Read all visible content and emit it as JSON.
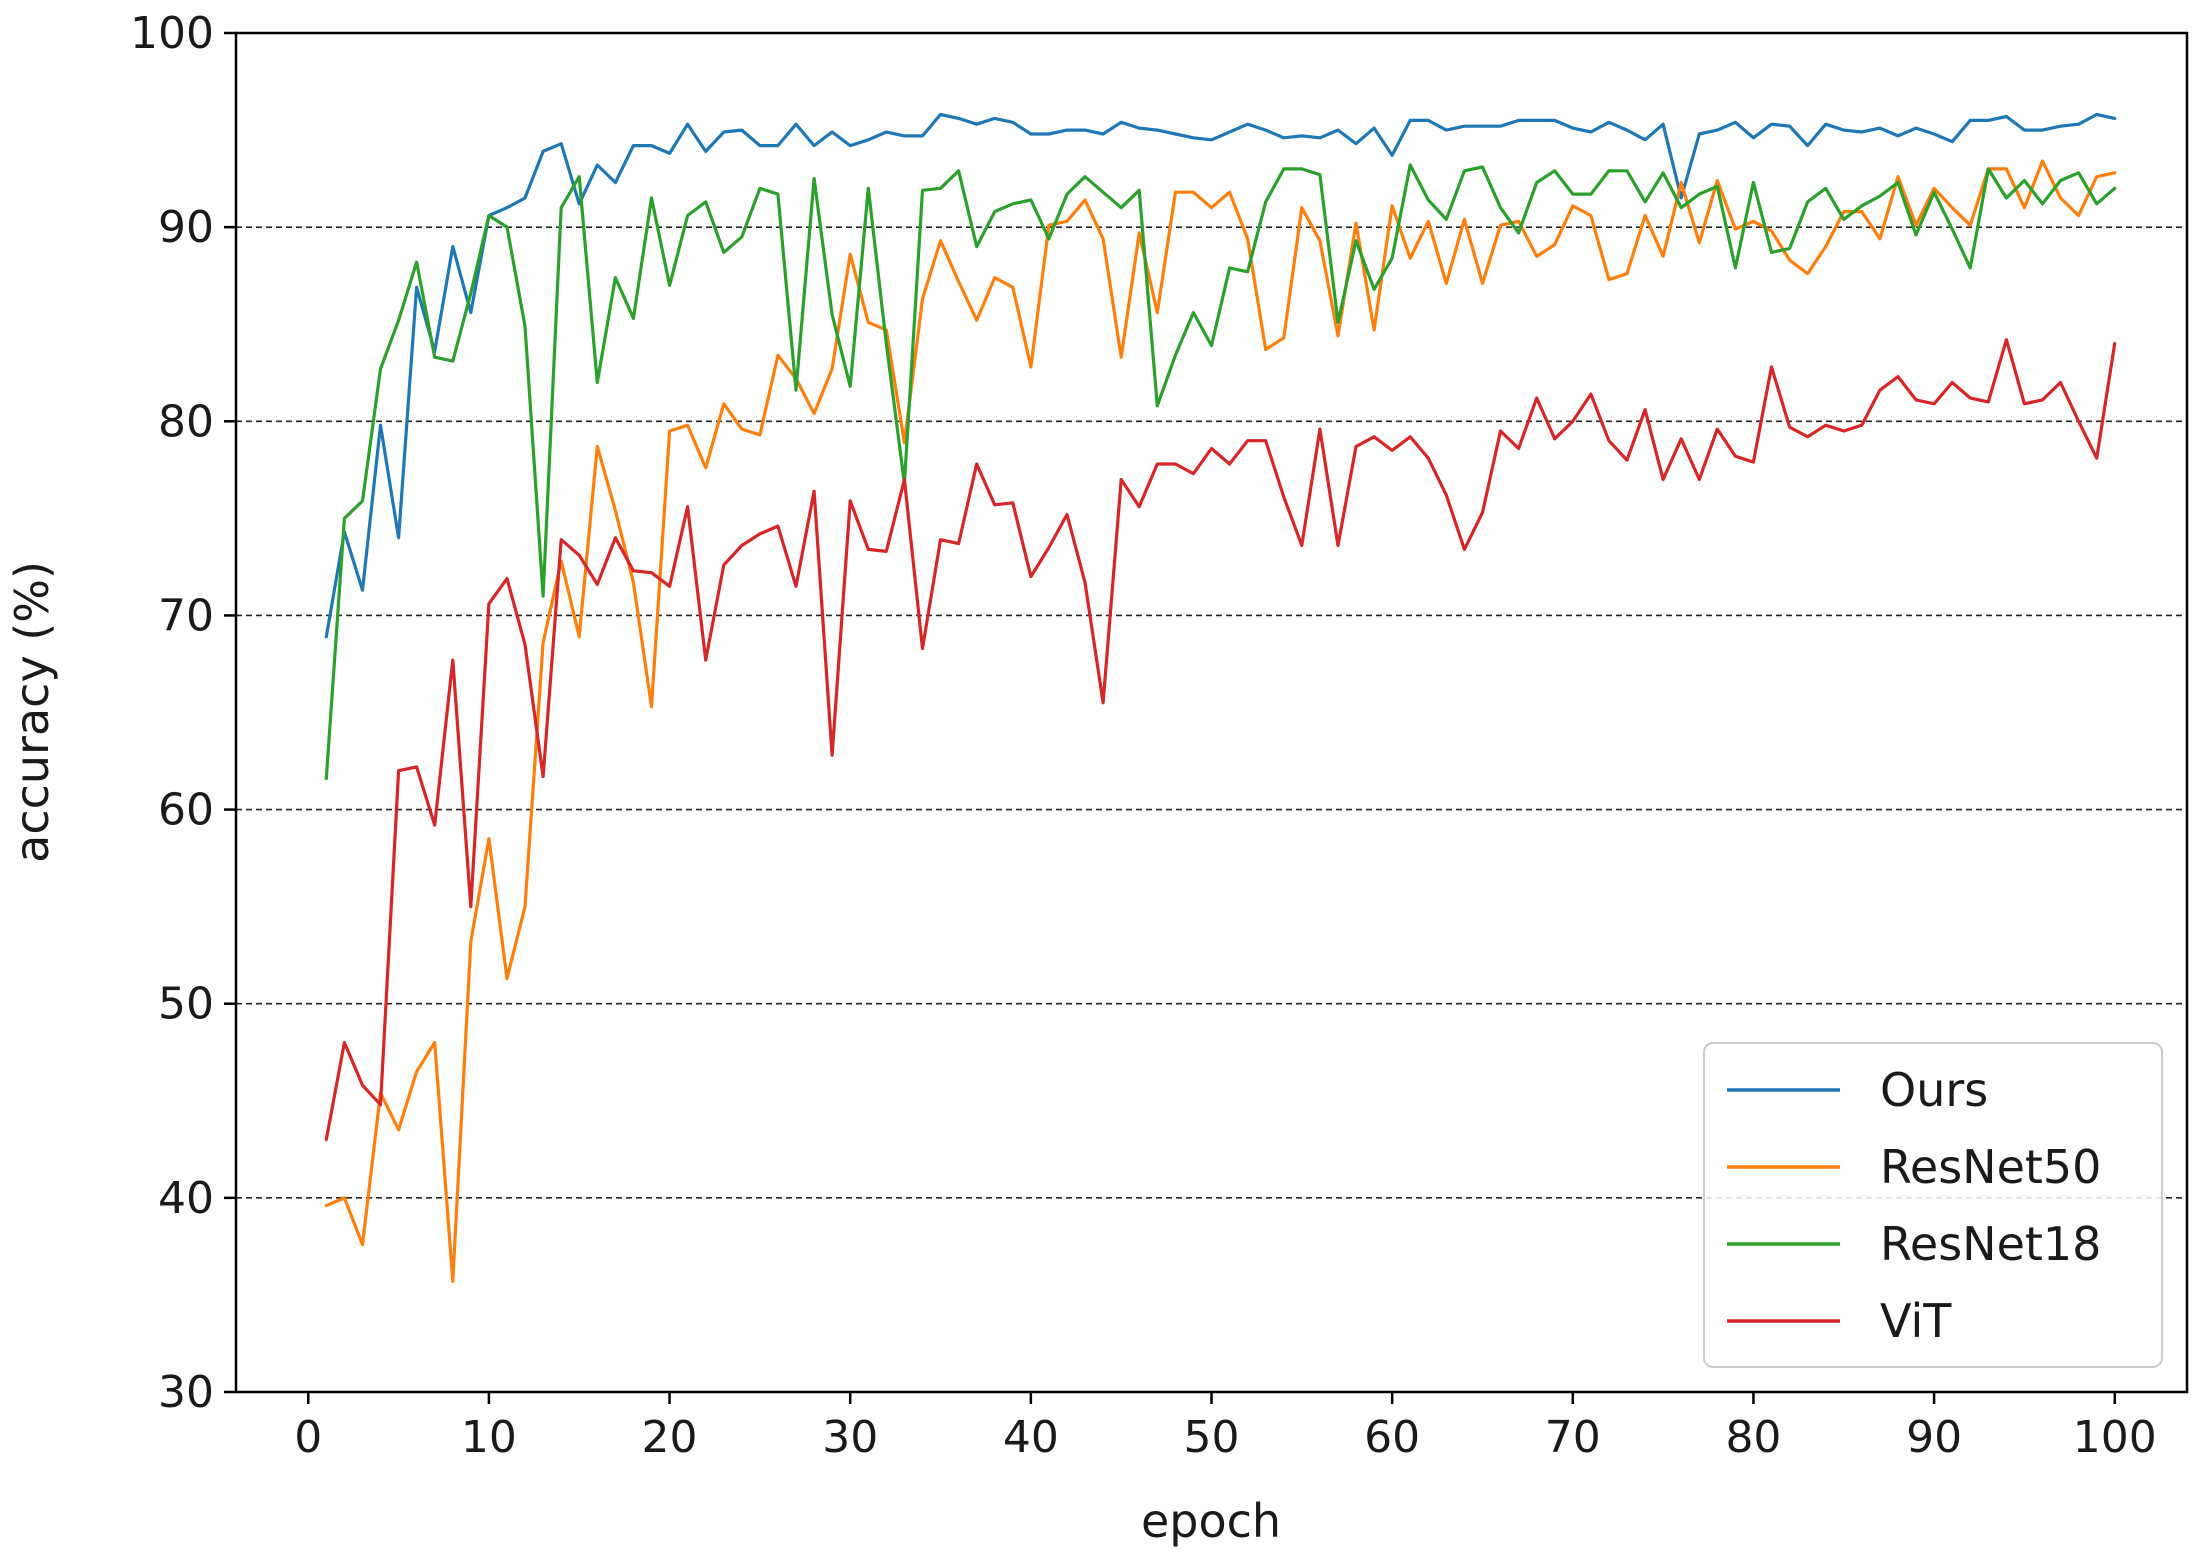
{
  "chart_data": {
    "type": "line",
    "title": "",
    "xlabel": "epoch",
    "ylabel": "accuracy (%)",
    "xlim": [
      -4,
      104
    ],
    "ylim": [
      30,
      100
    ],
    "xticks": [
      0,
      10,
      20,
      30,
      40,
      50,
      60,
      70,
      80,
      90,
      100
    ],
    "yticks": [
      30,
      40,
      50,
      60,
      70,
      80,
      90,
      100
    ],
    "xtick_labels": [
      "0",
      "10",
      "20",
      "30",
      "40",
      "50",
      "60",
      "70",
      "80",
      "90",
      "100"
    ],
    "ytick_labels": [
      "30",
      "40",
      "50",
      "60",
      "70",
      "80",
      "90",
      "100"
    ],
    "grid": {
      "axis": "y",
      "lines": [
        40,
        50,
        60,
        70,
        80,
        90
      ],
      "style": "dashed"
    },
    "legend": {
      "position": "lower right",
      "entries": [
        "Ours",
        "ResNet50",
        "ResNet18",
        "ViT"
      ]
    },
    "x": [
      1,
      2,
      3,
      4,
      5,
      6,
      7,
      8,
      9,
      10,
      11,
      12,
      13,
      14,
      15,
      16,
      17,
      18,
      19,
      20,
      21,
      22,
      23,
      24,
      25,
      26,
      27,
      28,
      29,
      30,
      31,
      32,
      33,
      34,
      35,
      36,
      37,
      38,
      39,
      40,
      41,
      42,
      43,
      44,
      45,
      46,
      47,
      48,
      49,
      50,
      51,
      52,
      53,
      54,
      55,
      56,
      57,
      58,
      59,
      60,
      61,
      62,
      63,
      64,
      65,
      66,
      67,
      68,
      69,
      70,
      71,
      72,
      73,
      74,
      75,
      76,
      77,
      78,
      79,
      80,
      81,
      82,
      83,
      84,
      85,
      86,
      87,
      88,
      89,
      90,
      91,
      92,
      93,
      94,
      95,
      96,
      97,
      98,
      99,
      100
    ],
    "series": [
      {
        "name": "Ours",
        "color": "#1f77b4",
        "values": [
          68.9,
          74.3,
          71.3,
          79.8,
          74.0,
          86.9,
          83.6,
          89.0,
          85.6,
          90.6,
          91.0,
          91.5,
          93.9,
          94.3,
          91.2,
          93.2,
          92.3,
          94.2,
          94.2,
          93.8,
          95.3,
          93.9,
          94.9,
          95.0,
          94.2,
          94.2,
          95.3,
          94.2,
          94.9,
          94.2,
          94.5,
          94.9,
          94.7,
          94.7,
          95.8,
          95.6,
          95.3,
          95.6,
          95.4,
          94.8,
          94.8,
          95.0,
          95.0,
          94.8,
          95.4,
          95.1,
          95.0,
          94.8,
          94.6,
          94.5,
          94.9,
          95.3,
          95.0,
          94.6,
          94.7,
          94.6,
          95.0,
          94.3,
          95.1,
          93.7,
          95.5,
          95.5,
          95.0,
          95.2,
          95.2,
          95.2,
          95.5,
          95.5,
          95.5,
          95.1,
          94.9,
          95.4,
          95.0,
          94.5,
          95.3,
          91.5,
          94.8,
          95.0,
          95.4,
          94.6,
          95.3,
          95.2,
          94.2,
          95.3,
          95.0,
          94.9,
          95.1,
          94.7,
          95.1,
          94.8,
          94.4,
          95.5,
          95.5,
          95.7,
          95.0,
          95.0,
          95.2,
          95.3,
          95.8,
          95.6
        ]
      },
      {
        "name": "ResNet50",
        "color": "#ff7f0e",
        "values": [
          39.6,
          40.0,
          37.6,
          45.4,
          43.5,
          46.5,
          48.0,
          35.7,
          53.2,
          58.5,
          51.3,
          55.0,
          68.6,
          72.8,
          68.9,
          78.7,
          75.4,
          71.7,
          65.3,
          79.5,
          79.8,
          77.6,
          80.9,
          79.6,
          79.3,
          83.4,
          82.2,
          80.4,
          82.7,
          88.6,
          85.1,
          84.7,
          78.9,
          86.3,
          89.3,
          87.2,
          85.2,
          87.4,
          86.9,
          82.8,
          90.1,
          90.3,
          91.4,
          89.4,
          83.3,
          89.7,
          85.6,
          91.8,
          91.8,
          91.0,
          91.8,
          89.4,
          83.7,
          84.3,
          91.0,
          89.3,
          84.4,
          90.2,
          84.7,
          91.1,
          88.4,
          90.3,
          87.1,
          90.4,
          87.1,
          90.1,
          90.3,
          88.5,
          89.1,
          91.1,
          90.6,
          87.3,
          87.6,
          90.6,
          88.5,
          92.3,
          89.2,
          92.4,
          89.9,
          90.3,
          89.8,
          88.3,
          87.6,
          89.0,
          90.8,
          90.8,
          89.4,
          92.6,
          90.1,
          92.0,
          91.0,
          90.1,
          93.0,
          93.0,
          91.0,
          93.4,
          91.5,
          90.6,
          92.6,
          92.8
        ]
      },
      {
        "name": "ResNet18",
        "color": "#2ca02c",
        "values": [
          61.6,
          75.0,
          75.9,
          82.7,
          85.2,
          88.2,
          83.3,
          83.1,
          86.6,
          90.6,
          90.0,
          84.9,
          71.0,
          91.0,
          92.6,
          82.0,
          87.4,
          85.3,
          91.5,
          87.0,
          90.6,
          91.3,
          88.7,
          89.5,
          92.0,
          91.7,
          81.6,
          92.5,
          85.5,
          81.8,
          92.0,
          84.0,
          76.8,
          91.9,
          92.0,
          92.9,
          89.0,
          90.8,
          91.2,
          91.4,
          89.4,
          91.7,
          92.6,
          91.8,
          91.0,
          91.9,
          80.8,
          83.4,
          85.6,
          83.9,
          87.9,
          87.7,
          91.3,
          93.0,
          93.0,
          92.7,
          85.1,
          89.3,
          86.8,
          88.4,
          93.2,
          91.4,
          90.4,
          92.9,
          93.1,
          91.0,
          89.7,
          92.3,
          92.9,
          91.7,
          91.7,
          92.9,
          92.9,
          91.3,
          92.8,
          91.0,
          91.7,
          92.1,
          87.9,
          92.3,
          88.7,
          88.9,
          91.3,
          92.0,
          90.4,
          91.1,
          91.6,
          92.3,
          89.6,
          91.8,
          89.9,
          87.9,
          93.0,
          91.5,
          92.4,
          91.2,
          92.4,
          92.8,
          91.2,
          92.0
        ]
      },
      {
        "name": "ViT",
        "color": "#d62728",
        "values": [
          43.0,
          48.0,
          45.8,
          44.8,
          62.0,
          62.2,
          59.2,
          67.7,
          55.0,
          70.6,
          71.9,
          68.5,
          61.7,
          73.9,
          73.1,
          71.6,
          74.0,
          72.3,
          72.2,
          71.5,
          75.6,
          67.7,
          72.6,
          73.6,
          74.2,
          74.6,
          71.5,
          76.4,
          62.8,
          75.9,
          73.4,
          73.3,
          77.0,
          68.3,
          73.9,
          73.7,
          77.8,
          75.7,
          75.8,
          72.0,
          73.5,
          75.2,
          71.7,
          65.5,
          77.0,
          75.6,
          77.8,
          77.8,
          77.3,
          78.6,
          77.8,
          79.0,
          79.0,
          76.1,
          73.6,
          79.6,
          73.6,
          78.7,
          79.2,
          78.5,
          79.2,
          78.1,
          76.2,
          73.4,
          75.3,
          79.5,
          78.6,
          81.2,
          79.1,
          80.0,
          81.4,
          79.0,
          78.0,
          80.6,
          77.0,
          79.1,
          77.0,
          79.6,
          78.2,
          77.9,
          82.8,
          79.7,
          79.2,
          79.8,
          79.5,
          79.8,
          81.6,
          82.3,
          81.1,
          80.9,
          82.0,
          81.2,
          81.0,
          84.2,
          80.9,
          81.1,
          82.0,
          80.0,
          78.1,
          84.0
        ]
      }
    ]
  }
}
